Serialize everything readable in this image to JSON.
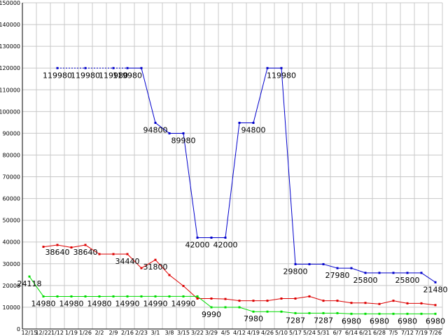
{
  "chart_data": {
    "type": "line",
    "title": "",
    "xlabel": "",
    "ylabel": "",
    "ylim": [
      0,
      150000
    ],
    "ytick_step": 10000,
    "grid": true,
    "legend": "none",
    "categories": [
      "12/15",
      "12/22",
      "1/12",
      "1/19",
      "1/26",
      "2/2",
      "2/9",
      "2/16",
      "2/23",
      "3/1",
      "3/8",
      "3/15",
      "3/22",
      "3/29",
      "4/5",
      "4/12",
      "4/19",
      "4/26",
      "5/10",
      "5/17",
      "5/24",
      "5/31",
      "6/7",
      "6/14",
      "6/21",
      "6/28",
      "7/5",
      "7/12",
      "7/19",
      "7/26"
    ],
    "series": [
      {
        "color": "#0000cc",
        "values": [
          null,
          null,
          119980,
          null,
          119980,
          null,
          119980,
          119980,
          119980,
          94800,
          89980,
          89980,
          42000,
          42000,
          42000,
          94800,
          94800,
          119980,
          119980,
          29800,
          29800,
          29800,
          27980,
          27980,
          25800,
          25800,
          25800,
          25800,
          25800,
          21480
        ],
        "dotted_until": 7
      },
      {
        "color": "#dd0000",
        "values": [
          null,
          37800,
          38640,
          37500,
          38640,
          34440,
          34440,
          34440,
          28000,
          31800,
          24800,
          19800,
          14000,
          14000,
          13800,
          13000,
          13000,
          13000,
          14000,
          14000,
          15000,
          13000,
          13000,
          12000,
          12000,
          11500,
          13000,
          11800,
          11800,
          11000
        ]
      },
      {
        "color": "#00dd00",
        "values": [
          24118,
          14980,
          14980,
          14980,
          14980,
          14980,
          14990,
          14990,
          14990,
          14990,
          14990,
          14990,
          14990,
          9990,
          9990,
          9990,
          7980,
          7980,
          7980,
          7287,
          7287,
          7287,
          7287,
          6980,
          6980,
          6980,
          6980,
          6980,
          6980,
          6980
        ]
      }
    ],
    "data_labels": [
      {
        "series": 0,
        "index": 2,
        "text": "119980"
      },
      {
        "series": 0,
        "index": 4,
        "text": "119980"
      },
      {
        "series": 0,
        "index": 6,
        "text": "119980"
      },
      {
        "series": 0,
        "index": 7,
        "text": "119980"
      },
      {
        "series": 0,
        "index": 9,
        "text": "94800"
      },
      {
        "series": 0,
        "index": 11,
        "text": "89980"
      },
      {
        "series": 0,
        "index": 12,
        "text": "42000"
      },
      {
        "series": 0,
        "index": 14,
        "text": "42000"
      },
      {
        "series": 0,
        "index": 16,
        "text": "94800"
      },
      {
        "series": 0,
        "index": 18,
        "text": "119980"
      },
      {
        "series": 0,
        "index": 19,
        "text": "29800"
      },
      {
        "series": 0,
        "index": 22,
        "text": "27980"
      },
      {
        "series": 0,
        "index": 24,
        "text": "25800"
      },
      {
        "series": 0,
        "index": 27,
        "text": "25800"
      },
      {
        "series": 0,
        "index": 29,
        "text": "21480"
      },
      {
        "series": 1,
        "index": 2,
        "text": "38640"
      },
      {
        "series": 1,
        "index": 4,
        "text": "38640"
      },
      {
        "series": 1,
        "index": 7,
        "text": "34440"
      },
      {
        "series": 1,
        "index": 9,
        "text": "31800"
      },
      {
        "series": 2,
        "index": 0,
        "text": "24118"
      },
      {
        "series": 2,
        "index": 1,
        "text": "14980"
      },
      {
        "series": 2,
        "index": 3,
        "text": "14980"
      },
      {
        "series": 2,
        "index": 5,
        "text": "14980"
      },
      {
        "series": 2,
        "index": 7,
        "text": "14990"
      },
      {
        "series": 2,
        "index": 9,
        "text": "14990"
      },
      {
        "series": 2,
        "index": 11,
        "text": "14990"
      },
      {
        "series": 2,
        "index": 13,
        "text": "9990"
      },
      {
        "series": 2,
        "index": 16,
        "text": "7980"
      },
      {
        "series": 2,
        "index": 19,
        "text": "7287"
      },
      {
        "series": 2,
        "index": 21,
        "text": "7287"
      },
      {
        "series": 2,
        "index": 23,
        "text": "6980"
      },
      {
        "series": 2,
        "index": 25,
        "text": "6980"
      },
      {
        "series": 2,
        "index": 27,
        "text": "6980"
      },
      {
        "series": 2,
        "index": 29,
        "text": "6980"
      }
    ]
  }
}
